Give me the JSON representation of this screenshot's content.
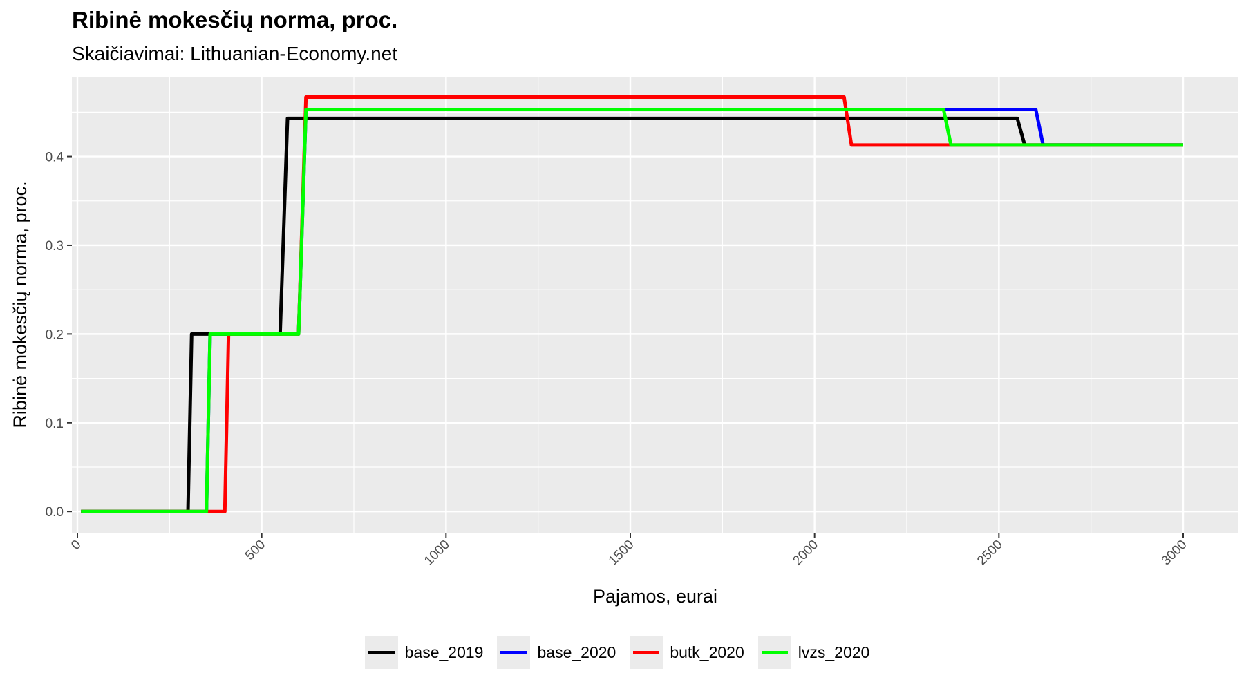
{
  "title": "Ribinė mokesčių norma, proc.",
  "subtitle": "Skaičiavimai: Lithuanian-Economy.net",
  "chart_data": {
    "type": "line",
    "title": "Ribinė mokesčių norma, proc.",
    "subtitle": "Skaičiavimai: Lithuanian-Economy.net",
    "xlabel": "Pajamos, eurai",
    "ylabel": "Ribinė mokesčių norma, proc.",
    "xlim": [
      -15,
      3150
    ],
    "ylim": [
      -0.024,
      0.49
    ],
    "x_ticks": [
      0,
      500,
      1000,
      1500,
      2000,
      2500,
      3000
    ],
    "x_tick_labels": [
      "0",
      "500",
      "1000",
      "1500",
      "2000",
      "2500",
      "3000"
    ],
    "y_ticks": [
      0.0,
      0.1,
      0.2,
      0.3,
      0.4
    ],
    "y_tick_labels": [
      "0.0",
      "0.1",
      "0.2",
      "0.3",
      "0.4"
    ],
    "grid": true,
    "legend_position": "bottom",
    "series": [
      {
        "name": "base_2019",
        "color": "#000000",
        "x": [
          10,
          300,
          310,
          550,
          570,
          2550,
          2570,
          3000
        ],
        "y": [
          0.0,
          0.0,
          0.2,
          0.2,
          0.443,
          0.443,
          0.413,
          0.413
        ]
      },
      {
        "name": "base_2020",
        "color": "#0000ff",
        "x": [
          10,
          350,
          360,
          600,
          620,
          2600,
          2620,
          3000
        ],
        "y": [
          0.0,
          0.0,
          0.2,
          0.2,
          0.453,
          0.453,
          0.413,
          0.413
        ]
      },
      {
        "name": "butk_2020",
        "color": "#ff0000",
        "x": [
          10,
          400,
          410,
          600,
          620,
          2080,
          2100,
          3000
        ],
        "y": [
          0.0,
          0.0,
          0.2,
          0.2,
          0.467,
          0.467,
          0.413,
          0.413
        ]
      },
      {
        "name": "lvzs_2020",
        "color": "#00ff00",
        "x": [
          10,
          350,
          360,
          600,
          620,
          2350,
          2370,
          3000
        ],
        "y": [
          0.0,
          0.0,
          0.2,
          0.2,
          0.453,
          0.453,
          0.413,
          0.413
        ]
      }
    ]
  }
}
